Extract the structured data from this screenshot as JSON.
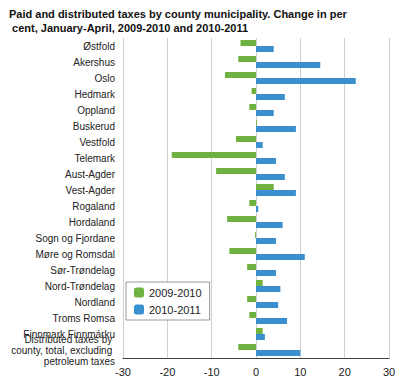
{
  "chart_data": {
    "type": "bar",
    "orientation": "horizontal",
    "title": "Paid and distributed taxes by county municipality. Change in per cent, January-April, 2009-2010 and 2010-2011",
    "categories": [
      "Østfold",
      "Akershus",
      "Oslo",
      "Hedmark",
      "Oppland",
      "Buskerud",
      "Vestfold",
      "Telemark",
      "Aust-Agder",
      "Vest-Agder",
      "Rogaland",
      "Hordaland",
      "Sogn og Fjordane",
      "Møre og Romsdal",
      "Sør-Trøndelag",
      "Nord-Trøndelag",
      "Nordland",
      "Troms Romsa",
      "Finnmark Finnmárku",
      "Distributed taxes by county, total, excluding petroleum taxes"
    ],
    "series": [
      {
        "name": "2009-2010",
        "color": "#6fb23f",
        "values": [
          -3.5,
          -4,
          -7,
          -1,
          -1.5,
          0.2,
          -4.5,
          -19,
          -9,
          4,
          -1.5,
          -6.5,
          -0.2,
          -6,
          -2,
          1.5,
          -2,
          -1.5,
          1.5,
          -4
        ]
      },
      {
        "name": "2010-2011",
        "color": "#3a8fd1",
        "values": [
          4,
          14.5,
          22.5,
          6.5,
          4,
          9,
          1.5,
          4.5,
          6.5,
          9,
          0.5,
          6,
          4.5,
          11,
          4.5,
          5.5,
          5,
          7,
          2,
          10
        ]
      }
    ],
    "xlim": [
      -30,
      30
    ],
    "xticks": [
      -30,
      -20,
      -10,
      0,
      10,
      20,
      30
    ],
    "grid": true,
    "legend": "lower left"
  }
}
